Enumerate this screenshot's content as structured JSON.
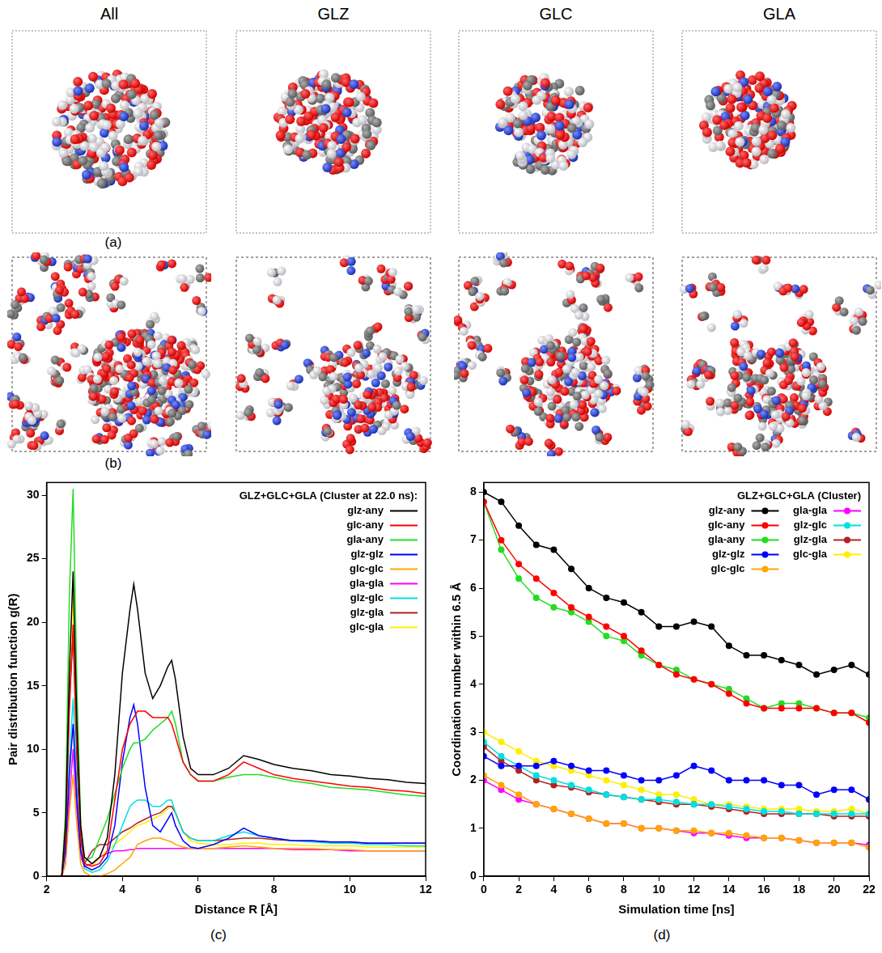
{
  "panels": {
    "columns": [
      "All",
      "GLZ",
      "GLC",
      "GLA"
    ],
    "a": {
      "label": "(a)"
    },
    "b": {
      "label": "(b)"
    }
  },
  "chart_data": [
    {
      "type": "line",
      "panel_label": "(c)",
      "title": "GLZ+GLC+GLA (Cluster at 22.0 ns):",
      "x_label": "Distance R [Å]",
      "y_label": "Pair distribution function g(R)",
      "x": [
        2.0,
        2.4,
        2.5,
        2.6,
        2.7,
        2.8,
        2.9,
        3.0,
        3.2,
        3.4,
        3.6,
        3.8,
        4.0,
        4.2,
        4.3,
        4.4,
        4.6,
        4.8,
        5.0,
        5.2,
        5.3,
        5.4,
        5.6,
        5.8,
        6.0,
        6.4,
        6.8,
        7.2,
        7.6,
        8.0,
        8.5,
        9.0,
        9.5,
        10.0,
        10.5,
        11.0,
        11.5,
        12.0
      ],
      "xlim": [
        2,
        12
      ],
      "xticks": [
        2,
        4,
        6,
        8,
        10,
        12
      ],
      "ylim": [
        0,
        31
      ],
      "yticks": [
        0,
        5,
        10,
        15,
        20,
        25,
        30
      ],
      "grid": false,
      "legend": "upper right",
      "marker": "none",
      "line_style": "solid",
      "series": [
        {
          "name": "glz-any",
          "color": "#000000",
          "values": [
            0,
            0,
            4,
            16,
            24,
            12,
            4,
            1.5,
            1,
            1.5,
            3,
            8,
            16,
            21,
            23,
            21,
            16,
            14,
            15,
            16.5,
            17,
            15.5,
            11,
            8.5,
            8,
            8,
            8.5,
            9.5,
            9.2,
            8.8,
            8.5,
            8.3,
            8,
            7.9,
            7.7,
            7.6,
            7.4,
            7.3
          ]
        },
        {
          "name": "glc-any",
          "color": "#ff0000",
          "values": [
            0,
            0,
            3,
            13,
            19.8,
            10,
            3,
            1,
            0.8,
            1,
            2,
            6,
            10,
            12,
            12.5,
            13,
            13,
            12.5,
            12.5,
            12.5,
            12,
            11,
            9,
            8,
            7.5,
            7.5,
            8,
            9,
            8.5,
            8,
            7.7,
            7.5,
            7.3,
            7.1,
            7,
            6.8,
            6.7,
            6.5
          ]
        },
        {
          "name": "gla-any",
          "color": "#22dd22",
          "values": [
            0,
            0,
            5,
            22,
            30.5,
            15,
            4,
            1.2,
            1.5,
            3,
            4.5,
            6.5,
            8.5,
            10,
            10.5,
            10.5,
            10.8,
            11.5,
            12,
            12.5,
            13,
            12,
            9,
            8,
            7.5,
            7.5,
            7.8,
            8,
            8,
            7.8,
            7.5,
            7.3,
            7,
            6.9,
            6.8,
            6.6,
            6.4,
            6.3
          ]
        },
        {
          "name": "glz-glz",
          "color": "#0000ff",
          "values": [
            0,
            0,
            2,
            8,
            12,
            6,
            2,
            0.8,
            0.5,
            0.8,
            1.5,
            4,
            9,
            12.5,
            13.5,
            12,
            7,
            4,
            3.5,
            4.5,
            5,
            4,
            2.8,
            2.3,
            2.2,
            2.5,
            3,
            3.8,
            3.2,
            3,
            2.8,
            2.8,
            2.7,
            2.7,
            2.6,
            2.6,
            2.6,
            2.6
          ]
        },
        {
          "name": "glc-glc",
          "color": "#ffa500",
          "values": [
            0,
            0,
            1,
            5,
            8,
            4,
            1,
            0.3,
            0,
            0,
            0.2,
            0.5,
            1,
            1.5,
            2,
            2.5,
            2.8,
            3,
            3,
            2.8,
            2.7,
            2.5,
            2.3,
            2.2,
            2.2,
            2.2,
            2.3,
            2.4,
            2.3,
            2.2,
            2.2,
            2.2,
            2.1,
            2.1,
            2,
            2,
            2,
            2
          ]
        },
        {
          "name": "gla-gla",
          "color": "#ff00ff",
          "values": [
            0,
            0,
            1,
            6,
            10,
            5,
            1.5,
            0.8,
            1,
            1.5,
            1.8,
            2,
            2,
            2.1,
            2.1,
            2.2,
            2.2,
            2.2,
            2.2,
            2.2,
            2.2,
            2.2,
            2.2,
            2.2,
            2.2,
            2.2,
            2.2,
            2.2,
            2.2,
            2.2,
            2.1,
            2.1,
            2.1,
            2,
            2,
            2,
            2,
            2
          ]
        },
        {
          "name": "glz-glc",
          "color": "#00e0e0",
          "values": [
            0,
            0,
            2,
            9,
            14,
            7,
            2,
            0.6,
            0.3,
            0.5,
            1.2,
            2.5,
            4,
            5.5,
            5.8,
            6,
            6,
            5.5,
            5.5,
            6,
            6,
            5,
            3.5,
            3,
            2.8,
            2.8,
            3.2,
            3.5,
            3.2,
            3,
            2.8,
            2.7,
            2.6,
            2.6,
            2.5,
            2.5,
            2.4,
            2.4
          ]
        },
        {
          "name": "glz-gla",
          "color": "#b22222",
          "values": [
            0,
            0,
            3,
            14,
            19,
            9,
            3,
            1,
            2,
            2.5,
            2.5,
            3,
            3.5,
            3.8,
            4,
            4.2,
            4.5,
            4.8,
            5,
            5.5,
            5.5,
            5,
            3.5,
            3,
            2.8,
            2.8,
            2.9,
            3,
            3,
            2.9,
            2.8,
            2.8,
            2.7,
            2.7,
            2.6,
            2.6,
            2.6,
            2.6
          ]
        },
        {
          "name": "glc-gla",
          "color": "#ffee00",
          "values": [
            0,
            0,
            4,
            16,
            22,
            10,
            3,
            0.8,
            0.8,
            1.5,
            2,
            2.5,
            3,
            3.5,
            3.8,
            4,
            4.2,
            4.5,
            4.8,
            5.3,
            5.5,
            5,
            3.5,
            2.8,
            2.6,
            2.5,
            2.5,
            2.6,
            2.6,
            2.5,
            2.5,
            2.4,
            2.4,
            2.4,
            2.3,
            2.3,
            2.3,
            2.3
          ]
        }
      ]
    },
    {
      "type": "line",
      "panel_label": "(d)",
      "title": "GLZ+GLC+GLA (Cluster)",
      "x_label": "Simulation time [ns]",
      "y_label": "Coordination number within 6.5 Å",
      "x": [
        0,
        1,
        2,
        3,
        4,
        5,
        6,
        7,
        8,
        9,
        10,
        11,
        12,
        13,
        14,
        15,
        16,
        17,
        18,
        19,
        20,
        21,
        22
      ],
      "xlim": [
        0,
        22
      ],
      "xticks": [
        0,
        2,
        4,
        6,
        8,
        10,
        12,
        14,
        16,
        18,
        20,
        22
      ],
      "ylim": [
        0,
        8.2
      ],
      "yticks": [
        0,
        1,
        2,
        3,
        4,
        5,
        6,
        7,
        8
      ],
      "grid": false,
      "legend": "upper right",
      "marker": "circle",
      "line_style": "solid",
      "series": [
        {
          "name": "glz-any",
          "color": "#000000",
          "values": [
            8.0,
            7.8,
            7.3,
            6.9,
            6.8,
            6.4,
            6.0,
            5.8,
            5.7,
            5.5,
            5.2,
            5.2,
            5.3,
            5.2,
            4.8,
            4.6,
            4.6,
            4.5,
            4.4,
            4.2,
            4.3,
            4.4,
            4.2
          ]
        },
        {
          "name": "glc-any",
          "color": "#ff0000",
          "values": [
            7.8,
            7.0,
            6.5,
            6.2,
            5.9,
            5.6,
            5.4,
            5.2,
            5.0,
            4.7,
            4.4,
            4.2,
            4.1,
            4.0,
            3.8,
            3.6,
            3.5,
            3.5,
            3.5,
            3.5,
            3.4,
            3.4,
            3.2
          ]
        },
        {
          "name": "gla-any",
          "color": "#22dd22",
          "values": [
            7.8,
            6.8,
            6.2,
            5.8,
            5.6,
            5.5,
            5.3,
            5.0,
            4.9,
            4.6,
            4.4,
            4.3,
            4.1,
            4.0,
            3.9,
            3.7,
            3.5,
            3.6,
            3.6,
            3.5,
            3.4,
            3.4,
            3.3
          ]
        },
        {
          "name": "glz-glz",
          "color": "#0000ff",
          "values": [
            2.5,
            2.3,
            2.3,
            2.3,
            2.4,
            2.3,
            2.2,
            2.2,
            2.1,
            2.0,
            2.0,
            2.1,
            2.3,
            2.2,
            2.0,
            2.0,
            2.0,
            1.9,
            1.9,
            1.7,
            1.8,
            1.8,
            1.6
          ]
        },
        {
          "name": "glc-glc",
          "color": "#ffa500",
          "values": [
            2.1,
            1.9,
            1.7,
            1.5,
            1.4,
            1.3,
            1.2,
            1.1,
            1.1,
            1.0,
            1.0,
            0.95,
            0.95,
            0.9,
            0.9,
            0.85,
            0.8,
            0.8,
            0.75,
            0.7,
            0.7,
            0.7,
            0.6
          ]
        },
        {
          "name": "gla-gla",
          "color": "#ff00ff",
          "values": [
            2.0,
            1.8,
            1.6,
            1.5,
            1.4,
            1.3,
            1.2,
            1.1,
            1.1,
            1.0,
            1.0,
            0.95,
            0.9,
            0.9,
            0.85,
            0.8,
            0.8,
            0.8,
            0.75,
            0.7,
            0.7,
            0.7,
            0.65
          ]
        },
        {
          "name": "glz-glc",
          "color": "#00e0e0",
          "values": [
            2.8,
            2.5,
            2.3,
            2.1,
            2.0,
            1.9,
            1.8,
            1.7,
            1.65,
            1.6,
            1.6,
            1.55,
            1.5,
            1.5,
            1.45,
            1.4,
            1.35,
            1.35,
            1.3,
            1.3,
            1.3,
            1.3,
            1.3
          ]
        },
        {
          "name": "glz-gla",
          "color": "#b22222",
          "values": [
            2.7,
            2.4,
            2.2,
            2.0,
            1.9,
            1.85,
            1.75,
            1.7,
            1.65,
            1.6,
            1.55,
            1.5,
            1.5,
            1.45,
            1.4,
            1.35,
            1.3,
            1.3,
            1.3,
            1.3,
            1.25,
            1.25,
            1.25
          ]
        },
        {
          "name": "glc-gla",
          "color": "#ffee00",
          "values": [
            3.0,
            2.8,
            2.6,
            2.4,
            2.3,
            2.2,
            2.1,
            2.0,
            1.9,
            1.8,
            1.7,
            1.7,
            1.6,
            1.5,
            1.5,
            1.45,
            1.4,
            1.4,
            1.4,
            1.35,
            1.35,
            1.4,
            1.3
          ]
        }
      ]
    }
  ]
}
